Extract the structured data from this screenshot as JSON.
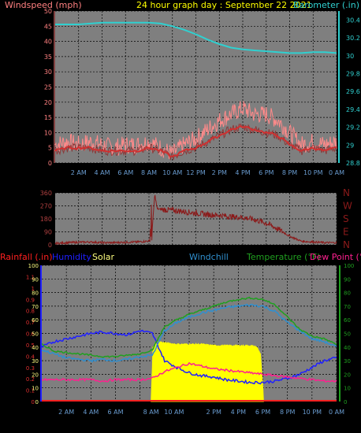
{
  "page_title": "24 hour graph day : September 22 2021",
  "colors": {
    "background": "#000000",
    "plot_bg": "#7f7f7f",
    "grid": "#000000",
    "wind_label": "#ff8080",
    "gust": "#ff8a8a",
    "wind_avg": "#d03030",
    "wind_dark": "#8b3a3a",
    "baro": "#30d0d0",
    "winddir": "#8b1a1a",
    "rain": "#ff2020",
    "humidity": "#2020ff",
    "solar": "#ffff00",
    "windchill": "#3090d0",
    "temperature": "#20a020",
    "dewpoint": "#ff2090",
    "title": "#ffff00"
  },
  "chart_data": [
    {
      "type": "line",
      "name": "wind-baro",
      "title": "24 hour graph day : September 22 2021",
      "ylabel_left": "Windspeed (mph)",
      "ylabel_right": "Barometer (.in)",
      "ylim_left": [
        0,
        50
      ],
      "ylim_right": [
        28.8,
        30.5
      ],
      "left_ticks": [
        "0",
        "5",
        "10",
        "15",
        "20",
        "25",
        "30",
        "35",
        "40",
        "45",
        "50"
      ],
      "right_ticks": [
        "28.8",
        "29",
        "29.2",
        "29.4",
        "29.6",
        "29.8",
        "30",
        "30.2",
        "30.4"
      ],
      "x_tick_labels": [
        "2 AM",
        "4 AM",
        "6 AM",
        "8 AM",
        "10 AM",
        "12 PM",
        "2 PM",
        "4 PM",
        "6 PM",
        "8 PM",
        "10 PM",
        "0 AM"
      ],
      "grid": true,
      "series": [
        {
          "name": "gust",
          "x": [
            0,
            1,
            2,
            3,
            4,
            5,
            6,
            7,
            8,
            9,
            10,
            11,
            12,
            13,
            14,
            15,
            16,
            17,
            18,
            19,
            20,
            21,
            22,
            23,
            24
          ],
          "values": [
            6,
            7,
            6,
            7,
            6,
            5,
            6,
            6,
            7,
            5,
            3,
            6,
            8,
            11,
            14,
            16,
            18,
            16,
            16,
            14,
            10,
            6,
            7,
            6,
            7
          ]
        },
        {
          "name": "wind-avg",
          "x": [
            0,
            1,
            2,
            3,
            4,
            5,
            6,
            7,
            8,
            9,
            10,
            11,
            12,
            13,
            14,
            15,
            16,
            17,
            18,
            19,
            20,
            21,
            22,
            23,
            24
          ],
          "values": [
            4,
            5,
            5,
            5,
            4,
            4,
            4,
            4,
            5,
            4,
            2,
            4,
            5,
            7,
            9,
            11,
            12,
            11,
            10,
            9,
            6,
            4,
            5,
            4,
            5
          ]
        },
        {
          "name": "barometer",
          "x": [
            0,
            2,
            4,
            6,
            8,
            9,
            10,
            11,
            12,
            13,
            14,
            15,
            16,
            17,
            18,
            19,
            20,
            21,
            22,
            23,
            24
          ],
          "values": [
            30.35,
            30.35,
            30.37,
            30.37,
            30.37,
            30.36,
            30.33,
            30.29,
            30.24,
            30.18,
            30.13,
            30.09,
            30.07,
            30.06,
            30.05,
            30.04,
            30.03,
            30.03,
            30.04,
            30.04,
            30.03
          ]
        }
      ]
    },
    {
      "type": "line",
      "name": "wind-direction",
      "ylim": [
        0,
        360
      ],
      "left_ticks": [
        "0",
        "90",
        "180",
        "270",
        "360"
      ],
      "compass_labels": [
        "N",
        "W",
        "S",
        "E",
        "N"
      ],
      "grid": true,
      "series": [
        {
          "name": "direction",
          "x": [
            0,
            1,
            2,
            3,
            4,
            5,
            6,
            7,
            7.8,
            8.2,
            8.5,
            8.7,
            9,
            10,
            11,
            12,
            13,
            14,
            15,
            16,
            17,
            18,
            19,
            20,
            21,
            22,
            23,
            24
          ],
          "values": [
            10,
            15,
            18,
            20,
            15,
            15,
            18,
            20,
            25,
            30,
            350,
            250,
            245,
            240,
            230,
            220,
            210,
            205,
            195,
            190,
            175,
            150,
            110,
            60,
            25,
            20,
            15,
            15
          ]
        }
      ]
    },
    {
      "type": "line",
      "name": "weather",
      "labels_top": [
        "Rainfall (.in)",
        "Humidity",
        "Solar",
        "Windchill",
        "Temperature (°F)",
        "Dew Point (°F"
      ],
      "ylim_left": [
        0,
        1.2
      ],
      "ylim_left2": [
        0,
        100
      ],
      "ylim_right": [
        0,
        100
      ],
      "left_ticks": [
        "0",
        "0.1",
        "0.2",
        "0.3",
        "0.4",
        "0.5",
        "0.6",
        "0.7",
        "0.8",
        "0.9",
        "1",
        "1.1"
      ],
      "left2_ticks": [
        "0",
        "10",
        "20",
        "30",
        "40",
        "50",
        "60",
        "70",
        "80",
        "90",
        "100"
      ],
      "right_ticks": [
        "0",
        "10",
        "20",
        "30",
        "40",
        "50",
        "60",
        "70",
        "80",
        "90",
        "100"
      ],
      "x_tick_labels": [
        "2 AM",
        "4 AM",
        "6 AM",
        "8 AM",
        "10 AM",
        "2 PM",
        "4 PM",
        "6 PM",
        "8 PM",
        "10 PM",
        "0 AM"
      ],
      "grid": true,
      "series": [
        {
          "name": "temperature",
          "x": [
            0,
            1,
            2,
            3,
            4,
            5,
            6,
            7,
            8,
            9,
            10,
            11,
            12,
            13,
            14,
            15,
            16,
            17,
            18,
            19,
            20,
            21,
            22,
            23,
            24
          ],
          "values": [
            42,
            37,
            36,
            35,
            34,
            33,
            33,
            34,
            35,
            38,
            55,
            60,
            64,
            67,
            70,
            73,
            75,
            76,
            75,
            71,
            62,
            53,
            48,
            46,
            42
          ]
        },
        {
          "name": "windchill",
          "x": [
            0,
            1,
            2,
            3,
            4,
            5,
            6,
            7,
            8,
            9,
            10,
            11,
            12,
            13,
            14,
            15,
            16,
            17,
            18,
            19,
            20,
            21,
            22,
            23,
            24
          ],
          "values": [
            38,
            35,
            32,
            31,
            30,
            31,
            30,
            31,
            33,
            34,
            52,
            58,
            62,
            65,
            67,
            69,
            70,
            71,
            70,
            66,
            58,
            52,
            46,
            44,
            40
          ]
        },
        {
          "name": "humidity",
          "x": [
            0,
            1,
            2,
            3,
            4,
            5,
            6,
            7,
            8,
            9,
            10,
            11,
            12,
            13,
            14,
            15,
            16,
            17,
            18,
            19,
            20,
            21,
            22,
            23,
            24
          ],
          "values": [
            40,
            44,
            46,
            48,
            50,
            51,
            50,
            49,
            52,
            50,
            30,
            25,
            21,
            19,
            18,
            16,
            15,
            14,
            14,
            15,
            17,
            20,
            25,
            30,
            32
          ]
        },
        {
          "name": "dewpoint",
          "x": [
            0,
            1,
            2,
            3,
            4,
            5,
            6,
            7,
            8,
            9,
            10,
            11,
            12,
            13,
            14,
            15,
            16,
            17,
            18,
            19,
            20,
            21,
            22,
            23,
            24
          ],
          "values": [
            16,
            16,
            16,
            16,
            16,
            15,
            16,
            16,
            16,
            17,
            22,
            25,
            28,
            26,
            24,
            23,
            22,
            21,
            20,
            19,
            18,
            17,
            16,
            15,
            15
          ]
        },
        {
          "name": "solar",
          "x": [
            8.9,
            9.0,
            9.05,
            9.1,
            9.2,
            9.5,
            10,
            11,
            12,
            13,
            14,
            15,
            16,
            17,
            17.5,
            17.8,
            18.0,
            18.05
          ],
          "values": [
            0,
            25,
            40,
            35,
            42,
            44,
            43,
            42,
            42,
            42,
            41,
            41,
            41,
            41,
            40,
            35,
            10,
            0
          ]
        },
        {
          "name": "rainfall",
          "x": [
            0,
            24
          ],
          "values": [
            0,
            0
          ]
        }
      ]
    }
  ]
}
